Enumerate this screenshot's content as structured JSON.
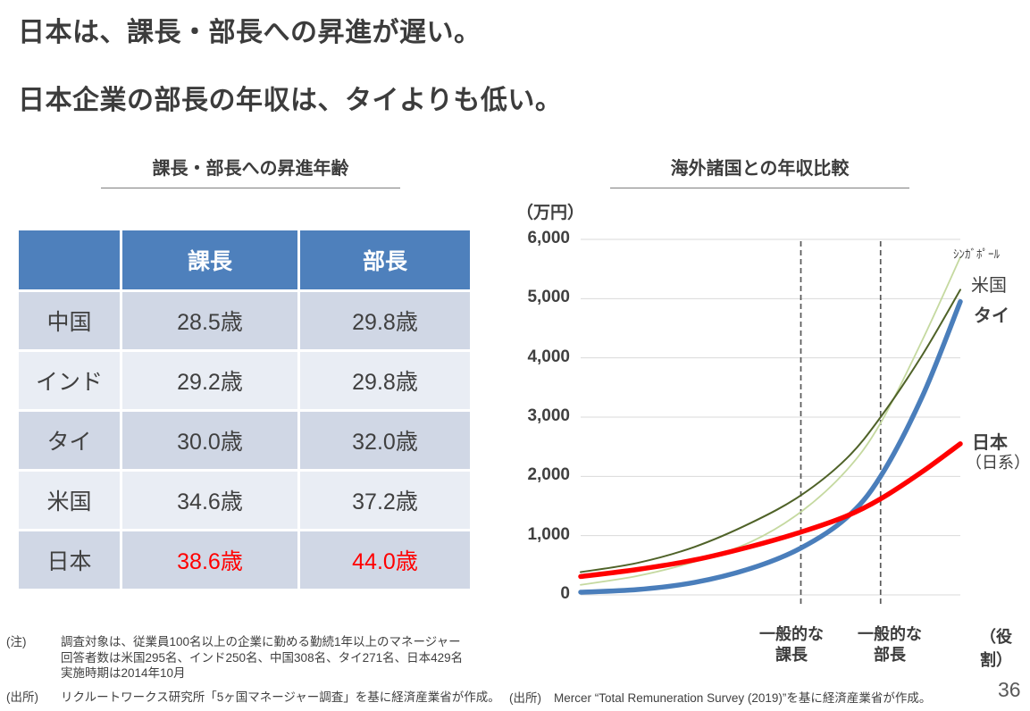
{
  "page": {
    "title_line1": "日本は、課長・部長への昇進が遅い。",
    "title_line2": "日本企業の部長の年収は、タイよりも低い。",
    "page_number": "36"
  },
  "table_section": {
    "title": "課長・部長への昇進年齢",
    "columns": {
      "kacho": "課長",
      "bucho": "部長"
    },
    "rows": [
      {
        "country": "中国",
        "kacho": "28.5歳",
        "bucho": "29.8歳"
      },
      {
        "country": "インド",
        "kacho": "29.2歳",
        "bucho": "29.8歳"
      },
      {
        "country": "タイ",
        "kacho": "30.0歳",
        "bucho": "32.0歳"
      },
      {
        "country": "米国",
        "kacho": "34.6歳",
        "bucho": "37.2歳"
      },
      {
        "country": "日本",
        "kacho": "38.6歳",
        "bucho": "44.0歳"
      }
    ],
    "note_label": "(注)",
    "note_lines": "調査対象は、従業員100名以上の企業に勤める勤続1年以上のマネージャー\n回答者数は米国295名、インド250名、中国308名、タイ271名、日本429名\n実施時期は2014年10月",
    "source_label": "(出所)",
    "source_text": "リクルートワークス研究所「5ヶ国マネージャー調査」を基に経済産業省が作成。"
  },
  "chart_section": {
    "title": "海外諸国との年収比較",
    "source_label": "(出所)",
    "source_text": "Mercer “Total Remuneration Survey (2019)”を基に経済産業省が作成。"
  },
  "chart_data": {
    "type": "line",
    "title": "海外諸国との年収比較",
    "ylabel": "（万円）",
    "xlabel": "（役割）",
    "ylim": [
      0,
      6000
    ],
    "yticks": [
      0,
      1000,
      2000,
      3000,
      4000,
      5000,
      6000
    ],
    "ytick_labels": [
      "0",
      "1,000",
      "2,000",
      "3,000",
      "4,000",
      "5,000",
      "6,000"
    ],
    "grid": true,
    "grid_color": "#d9d9d9",
    "marker_color": "#595959",
    "x_axis_note": "x = 役割（キャリア上の役職レベル）、0〜1 に正規化",
    "x": [
      0,
      0.15,
      0.3,
      0.45,
      0.58,
      0.7,
      0.79,
      0.9,
      1.0
    ],
    "series": [
      {
        "name": "シンガポール",
        "label": "ｼﾝｶﾞﾎﾟｰﾙ",
        "color": "#c5d9a0",
        "stroke_width": 1.8,
        "values": [
          170,
          320,
          560,
          900,
          1400,
          2100,
          2900,
          4300,
          5700
        ]
      },
      {
        "name": "米国",
        "label": "米国",
        "color": "#4f6228",
        "stroke_width": 2,
        "values": [
          385,
          540,
          810,
          1220,
          1680,
          2300,
          3000,
          4050,
          5150
        ]
      },
      {
        "name": "タイ",
        "label": "タイ",
        "color": "#4a7ebb",
        "stroke_width": 5.5,
        "values": [
          45,
          90,
          210,
          450,
          790,
          1300,
          2000,
          3350,
          4950
        ]
      },
      {
        "name": "日本（日系）",
        "label": "日本",
        "sublabel": "（日系）",
        "color": "#ff0000",
        "stroke_width": 5.5,
        "values": [
          310,
          430,
          590,
          820,
          1060,
          1330,
          1620,
          2080,
          2550
        ]
      }
    ],
    "role_markers": [
      {
        "t": 0.58,
        "label_line1": "一般的な",
        "label_line2": "課長"
      },
      {
        "t": 0.79,
        "label_line1": "一般的な",
        "label_line2": "部長"
      }
    ],
    "legend_position": "right-of-lines"
  }
}
